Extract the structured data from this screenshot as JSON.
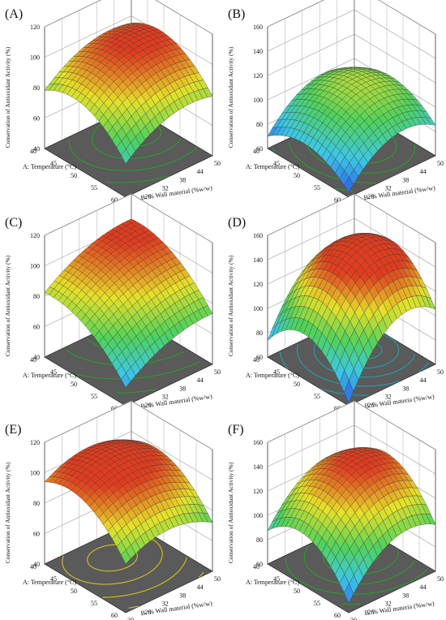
{
  "chart_data": [
    {
      "type": "surface3d",
      "panel_label": "(A)",
      "zlabel": "Conservation of Antioxidant Activity (%)",
      "xlabel": "A: Temperature (°C)",
      "ylabel": "B: % Wall material (%w/w)",
      "x_ticks": [
        "40",
        "45",
        "50",
        "55",
        "60"
      ],
      "y_ticks": [
        "20",
        "26",
        "32",
        "38",
        "44",
        "50"
      ],
      "z_ticks": [
        "40",
        "60",
        "80",
        "100",
        "120"
      ],
      "x_range": [
        40,
        60
      ],
      "y_range": [
        20,
        50
      ],
      "z_range": [
        40,
        120
      ],
      "surface_min": 62,
      "surface_max": 104,
      "contour_color": "#2a9d2a"
    },
    {
      "type": "surface3d",
      "panel_label": "(B)",
      "zlabel": "Conservation of Antioxidant Activity (%)",
      "xlabel": "A: Temperature (°C)",
      "ylabel": "B: % Wall material (%w/w)",
      "x_ticks": [
        "40",
        "45",
        "50",
        "55",
        "60"
      ],
      "y_ticks": [
        "20",
        "26",
        "32",
        "38",
        "44",
        "50"
      ],
      "z_ticks": [
        "60",
        "80",
        "100",
        "120",
        "140",
        "160"
      ],
      "x_range": [
        40,
        60
      ],
      "y_range": [
        20,
        50
      ],
      "z_range": [
        60,
        160
      ],
      "surface_min": 64,
      "surface_max": 112,
      "contour_color": "#2a9d2a"
    },
    {
      "type": "surface3d",
      "panel_label": "(C)",
      "zlabel": "Conservation of Antioxidant Activity (%)",
      "xlabel": "A: Temperature (°C)",
      "ylabel": "B: % Wall material (%w/w)",
      "x_ticks": [
        "40",
        "45",
        "50",
        "55",
        "60"
      ],
      "y_ticks": [
        "20",
        "26",
        "32",
        "38",
        "44",
        "50"
      ],
      "z_ticks": [
        "40",
        "60",
        "80",
        "100",
        "120"
      ],
      "x_range": [
        40,
        60
      ],
      "y_range": [
        20,
        50
      ],
      "z_range": [
        40,
        120
      ],
      "surface_min": 52,
      "surface_max": 104,
      "contour_color": "#2a9d2a"
    },
    {
      "type": "surface3d",
      "panel_label": "(D)",
      "zlabel": "Conservation of Antioxidant Activity (%)",
      "xlabel": "A: Temperature (°C)",
      "ylabel": "B: % Wall materia (%w/w)",
      "x_ticks": [
        "40",
        "45",
        "50",
        "55",
        "60"
      ],
      "y_ticks": [
        "20",
        "26",
        "32",
        "38",
        "44",
        "50"
      ],
      "z_ticks": [
        "60",
        "80",
        "100",
        "120",
        "140",
        "160"
      ],
      "x_range": [
        40,
        60
      ],
      "y_range": [
        20,
        50
      ],
      "z_range": [
        60,
        160
      ],
      "surface_min": 62,
      "surface_max": 150,
      "contour_color": "#1fa0b0"
    },
    {
      "type": "surface3d",
      "panel_label": "(E)",
      "zlabel": "Conservation of Antioxidant Activity (%)",
      "xlabel": "A: Temperature (°C)",
      "ylabel": "B: % Wall material (%w/w)",
      "x_ticks": [
        "40",
        "45",
        "50",
        "55",
        "60"
      ],
      "y_ticks": [
        "20",
        "26",
        "32",
        "38",
        "44",
        "50"
      ],
      "z_ticks": [
        "40",
        "60",
        "80",
        "100",
        "120"
      ],
      "x_range": [
        40,
        60
      ],
      "y_range": [
        20,
        50
      ],
      "z_range": [
        40,
        120
      ],
      "surface_min": 72,
      "surface_max": 108,
      "contour_color": "#d4c21a"
    },
    {
      "type": "surface3d",
      "panel_label": "(F)",
      "zlabel": "Conservation of Antioxidant Activity (%)",
      "xlabel": "A: Temperature (°C)",
      "ylabel": "B: % Wall materia (%w/w)",
      "x_ticks": [
        "40",
        "45",
        "50",
        "55",
        "60"
      ],
      "y_ticks": [
        "20",
        "26",
        "32",
        "38",
        "44",
        "50"
      ],
      "z_ticks": [
        "60",
        "80",
        "100",
        "120",
        "140",
        "160"
      ],
      "x_range": [
        40,
        60
      ],
      "y_range": [
        20,
        50
      ],
      "z_range": [
        60,
        160
      ],
      "surface_min": 68,
      "surface_max": 140,
      "contour_color": "#2a9d2a"
    }
  ]
}
